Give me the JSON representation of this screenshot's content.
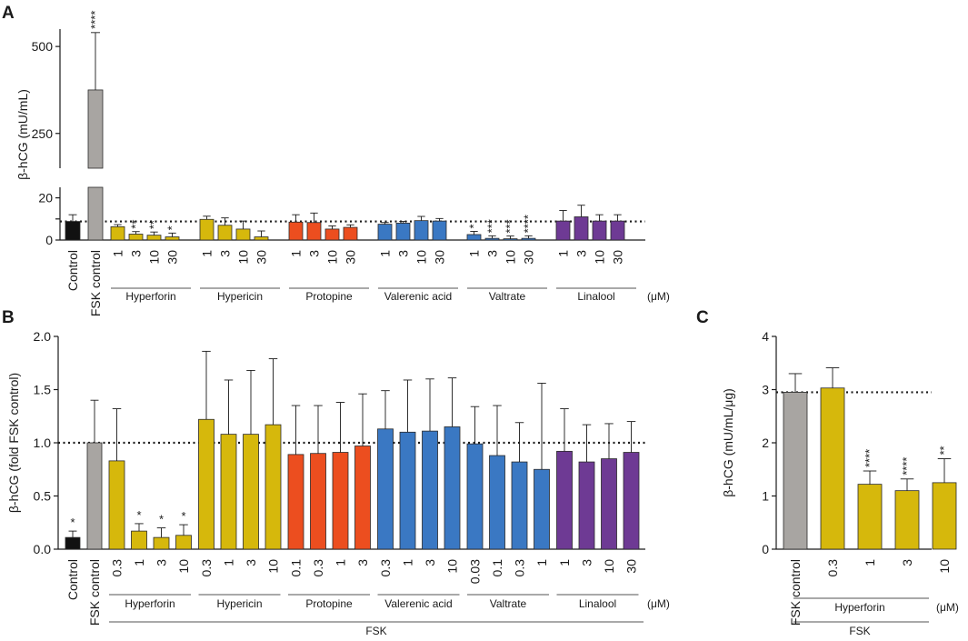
{
  "panels": [
    {
      "letter": "A"
    },
    {
      "letter": "B"
    },
    {
      "letter": "C"
    }
  ],
  "unit_label": "(μM)",
  "fsk_label": "FSK",
  "reference_line": "dotted",
  "chart_data": [
    {
      "type": "bar",
      "panel": "A",
      "ylabel": "β-hCG (mU/mL)",
      "y_axis": "broken",
      "ylim_lower": [
        0,
        25
      ],
      "ylim_upper": [
        150,
        550
      ],
      "yticks": [
        0,
        10,
        20,
        250,
        500
      ],
      "ytick_labels": [
        "0",
        "",
        "20",
        "250",
        "500"
      ],
      "reference_value": 8.8,
      "colors": {
        "Control": "#111111",
        "FSK control": "#a8a5a2",
        "Hyperforin": "#d6b80c",
        "Hypericin": "#d6b80c",
        "Protopine": "#ec4e1f",
        "Valerenic acid": "#3a78c3",
        "Valtrate": "#3a78c3",
        "Linalool": "#6e3a94"
      },
      "controls": [
        {
          "label": "Control",
          "value": 8.8,
          "err": 3.2,
          "sig": ""
        },
        {
          "label": "FSK control",
          "value": 375,
          "err": 165,
          "sig": "****"
        }
      ],
      "groups": [
        {
          "name": "Hyperforin",
          "doses": [
            "1",
            "3",
            "10",
            "30"
          ],
          "values": [
            6.3,
            2.8,
            2.3,
            1.5
          ],
          "errors": [
            1.0,
            1.2,
            1.5,
            1.8
          ],
          "sig": [
            "",
            "**",
            "**",
            "*"
          ]
        },
        {
          "name": "Hypericin",
          "doses": [
            "1",
            "3",
            "10",
            "30"
          ],
          "values": [
            9.8,
            7.0,
            5.2,
            1.5
          ],
          "errors": [
            1.5,
            3.5,
            3.8,
            2.8
          ],
          "sig": [
            "",
            "",
            "",
            ""
          ]
        },
        {
          "name": "Protopine",
          "doses": [
            "1",
            "3",
            "10",
            "30"
          ],
          "values": [
            8.5,
            8.3,
            5.2,
            6.0
          ],
          "errors": [
            3.5,
            4.5,
            1.5,
            1.2
          ],
          "sig": [
            "",
            "",
            "",
            ""
          ]
        },
        {
          "name": "Valerenic acid",
          "doses": [
            "1",
            "3",
            "10",
            "30"
          ],
          "values": [
            7.5,
            8.0,
            9.2,
            9.0
          ],
          "errors": [
            0.8,
            0.8,
            2.0,
            1.2
          ],
          "sig": [
            "",
            "",
            "",
            ""
          ]
        },
        {
          "name": "Valtrate",
          "doses": [
            "1",
            "3",
            "10",
            "30"
          ],
          "values": [
            2.6,
            0.8,
            0.6,
            0.8
          ],
          "errors": [
            1.5,
            1.2,
            1.3,
            1.2
          ],
          "sig": [
            "*",
            "***",
            "***",
            "****"
          ]
        },
        {
          "name": "Linalool",
          "doses": [
            "1",
            "3",
            "10",
            "30"
          ],
          "values": [
            9.0,
            11.0,
            9.0,
            9.0
          ],
          "errors": [
            5.0,
            5.5,
            3.0,
            3.0
          ],
          "sig": [
            "",
            "",
            "",
            ""
          ]
        }
      ]
    },
    {
      "type": "bar",
      "panel": "B",
      "ylabel": "β-hCG (fold FSK control)",
      "ylim": [
        0,
        2.0
      ],
      "yticks": [
        0,
        0.5,
        1.0,
        1.5,
        2.0
      ],
      "ytick_labels": [
        "0.0",
        "0.5",
        "1.0",
        "1.5",
        "2.0"
      ],
      "reference_value": 1.0,
      "controls": [
        {
          "label": "Control",
          "value": 0.11,
          "err": 0.06,
          "sig": "*"
        },
        {
          "label": "FSK control",
          "value": 1.0,
          "err": 0.4,
          "sig": ""
        }
      ],
      "groups": [
        {
          "name": "Hyperforin",
          "doses": [
            "0.3",
            "1",
            "3",
            "10"
          ],
          "values": [
            0.83,
            0.17,
            0.11,
            0.13
          ],
          "errors": [
            0.49,
            0.07,
            0.09,
            0.1
          ],
          "sig": [
            "",
            "*",
            "*",
            "*"
          ]
        },
        {
          "name": "Hypericin",
          "doses": [
            "0.3",
            "1",
            "3",
            "10"
          ],
          "values": [
            1.22,
            1.08,
            1.08,
            1.17
          ],
          "errors": [
            0.64,
            0.51,
            0.6,
            0.62
          ],
          "sig": [
            "",
            "",
            "",
            ""
          ]
        },
        {
          "name": "Protopine",
          "doses": [
            "0.1",
            "0.3",
            "1",
            "3"
          ],
          "values": [
            0.89,
            0.9,
            0.91,
            0.97
          ],
          "errors": [
            0.46,
            0.45,
            0.47,
            0.49
          ],
          "sig": [
            "",
            "",
            "",
            ""
          ]
        },
        {
          "name": "Valerenic acid",
          "doses": [
            "0.3",
            "1",
            "3",
            "10"
          ],
          "values": [
            1.13,
            1.1,
            1.11,
            1.15
          ],
          "errors": [
            0.36,
            0.49,
            0.49,
            0.46
          ],
          "sig": [
            "",
            "",
            "",
            ""
          ]
        },
        {
          "name": "Valtrate",
          "doses": [
            "0.03",
            "0.1",
            "0.3",
            "1"
          ],
          "values": [
            0.99,
            0.88,
            0.82,
            0.75
          ],
          "errors": [
            0.35,
            0.47,
            0.37,
            0.81
          ],
          "sig": [
            "",
            "",
            "",
            ""
          ]
        },
        {
          "name": "Linalool",
          "doses": [
            "1",
            "3",
            "10",
            "30"
          ],
          "values": [
            0.92,
            0.82,
            0.85,
            0.91
          ],
          "errors": [
            0.4,
            0.35,
            0.33,
            0.29
          ],
          "sig": [
            "",
            "",
            "",
            ""
          ]
        }
      ]
    },
    {
      "type": "bar",
      "panel": "C",
      "ylabel": "β-hCG (mU/mL/μg)",
      "ylim": [
        0,
        4
      ],
      "yticks": [
        0,
        1,
        2,
        3,
        4
      ],
      "ytick_labels": [
        "0",
        "1",
        "2",
        "3",
        "4"
      ],
      "reference_value": 2.95,
      "controls": [
        {
          "label": "FSK control",
          "value": 2.95,
          "err": 0.35,
          "sig": ""
        }
      ],
      "groups": [
        {
          "name": "Hyperforin",
          "doses": [
            "0.3",
            "1",
            "3",
            "10"
          ],
          "values": [
            3.03,
            1.22,
            1.1,
            1.25
          ],
          "errors": [
            0.38,
            0.25,
            0.22,
            0.45
          ],
          "sig": [
            "",
            "****",
            "****",
            "**"
          ]
        }
      ]
    }
  ]
}
